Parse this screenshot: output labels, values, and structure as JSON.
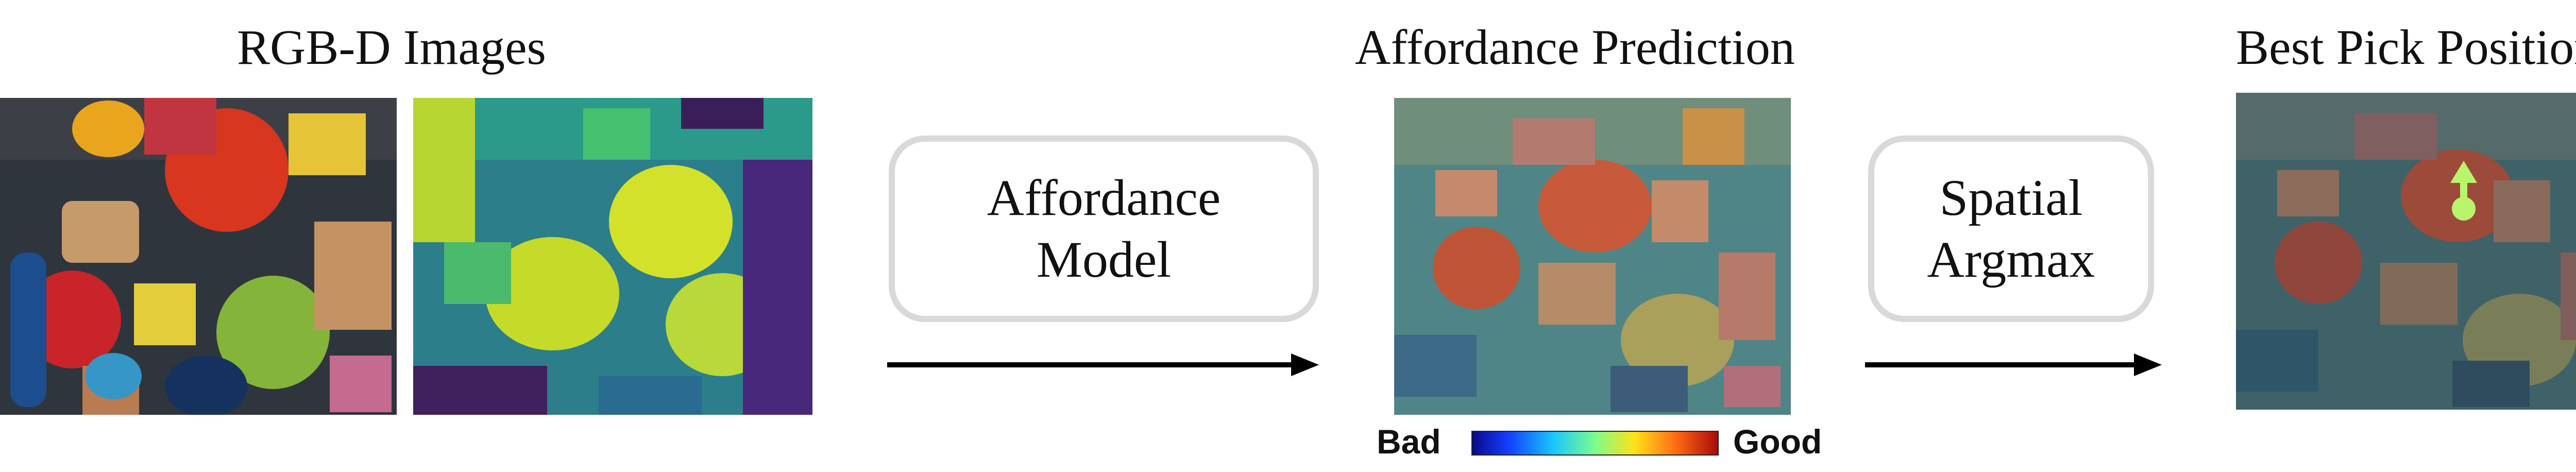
{
  "sections": {
    "rgbd_title": "RGB-D Images",
    "affordance_title": "Affordance Prediction",
    "best_pick_title": "Best Pick Position"
  },
  "boxes": {
    "affordance_model_line1": "Affordance",
    "affordance_model_line2": "Model",
    "spatial_argmax_line1": "Spatial",
    "spatial_argmax_line2": "Argmax"
  },
  "colorbar": {
    "bad_label": "Bad",
    "good_label": "Good"
  },
  "colors": {
    "arrow": "#000000",
    "box_border": "#d9d9d9",
    "pick_marker": "#b8f56c"
  }
}
